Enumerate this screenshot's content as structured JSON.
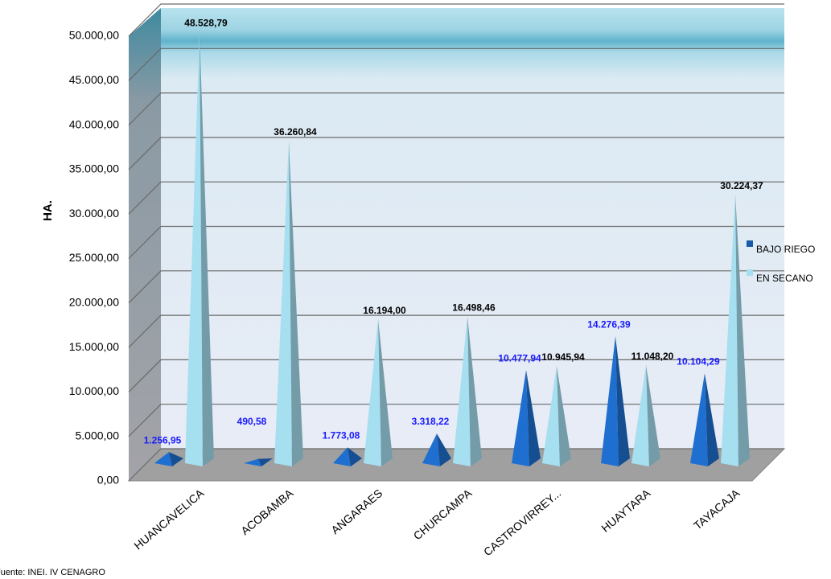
{
  "chart_data": {
    "type": "bar",
    "y_label": "HA.",
    "source": "Fuente: INEI. IV CENAGRO",
    "categories": [
      "HUANCAVELICA",
      "ACOBAMBA",
      "ANGARAES",
      "CHURCAMPA",
      "CASTROVIRREY...",
      "HUAYTARA",
      "TAYACAJA"
    ],
    "series": [
      {
        "name": "BAJO RIEGO",
        "color": "#1f6fd0",
        "label_color": "#1a1aff",
        "values": [
          1256.95,
          490.58,
          1773.08,
          3318.22,
          10477.94,
          14276.39,
          10104.29
        ],
        "value_labels": [
          "1.256,95",
          "490,58",
          "1.773,08",
          "3.318,22",
          "10.477,94",
          "14.276,39",
          "10.104,29"
        ]
      },
      {
        "name": "EN SECANO",
        "color": "#a6dff0",
        "label_color": "#000000",
        "values": [
          48528.79,
          36260.84,
          16194.0,
          16498.46,
          10945.94,
          11048.2,
          30224.37
        ],
        "value_labels": [
          "48.528,79",
          "36.260,84",
          "16.194,00",
          "16.498,46",
          "10.945,94",
          "11.048,20",
          "30.224,37"
        ]
      }
    ],
    "ylim": [
      0,
      50000
    ],
    "yticks": [
      {
        "value": 0,
        "label": "0,00"
      },
      {
        "value": 5000,
        "label": "5.000,00"
      },
      {
        "value": 10000,
        "label": "10.000,00"
      },
      {
        "value": 15000,
        "label": "15.000,00"
      },
      {
        "value": 20000,
        "label": "20.000,00"
      },
      {
        "value": 25000,
        "label": "25.000,00"
      },
      {
        "value": 30000,
        "label": "30.000,00"
      },
      {
        "value": 35000,
        "label": "35.000,00"
      },
      {
        "value": 40000,
        "label": "40.000,00"
      },
      {
        "value": 45000,
        "label": "45.000,00"
      },
      {
        "value": 50000,
        "label": "50.000,00"
      }
    ],
    "grid": true,
    "legend": "right"
  }
}
